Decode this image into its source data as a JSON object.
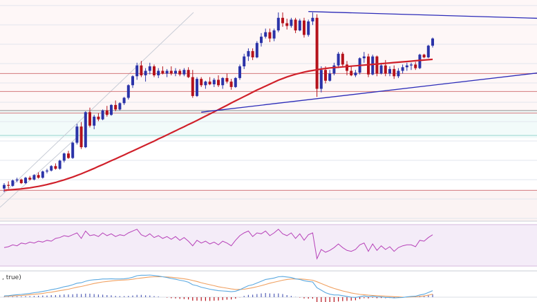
{
  "colors": {
    "bull": "#2b33a8",
    "bear": "#b5121b",
    "sma": "#d0202a",
    "trendline": "#2a2ab8",
    "support_line": "#d2777b",
    "grid": "#e2e6ee",
    "rsi_band": "#f4ecf8",
    "rsi_line": "#b640b8",
    "macd_line": "#5aa8e0",
    "signal_line": "#f0a060",
    "pane_border": "#c8ccd6",
    "price_band": "#fdf1f1"
  },
  "macd_panel": {
    "label": ", true)"
  },
  "chart_data": {
    "type": "candlestick",
    "title": "",
    "xlabel": "",
    "ylabel": "",
    "price_range": [
      0,
      100
    ],
    "grid": true,
    "candles": [
      [
        2.0,
        5.0,
        0.0,
        4.0
      ],
      [
        4.0,
        6.0,
        2.0,
        3.5
      ],
      [
        3.5,
        7.0,
        3.0,
        6.5
      ],
      [
        6.5,
        8.0,
        5.5,
        7.0
      ],
      [
        7.0,
        7.5,
        4.5,
        5.0
      ],
      [
        5.0,
        8.5,
        4.5,
        8.0
      ],
      [
        8.0,
        9.0,
        6.5,
        7.0
      ],
      [
        7.0,
        10.0,
        6.5,
        9.5
      ],
      [
        9.5,
        11.0,
        7.5,
        8.0
      ],
      [
        8.0,
        12.0,
        7.5,
        11.5
      ],
      [
        11.5,
        13.0,
        10.5,
        12.0
      ],
      [
        12.0,
        15.0,
        11.5,
        14.5
      ],
      [
        14.5,
        16.0,
        12.5,
        13.0
      ],
      [
        13.0,
        18.0,
        12.5,
        17.5
      ],
      [
        17.5,
        22.0,
        16.5,
        21.5
      ],
      [
        21.5,
        23.0,
        18.5,
        19.0
      ],
      [
        19.0,
        28.0,
        18.5,
        27.5
      ],
      [
        27.5,
        38.0,
        26.5,
        36.5
      ],
      [
        36.5,
        39.0,
        24.0,
        25.0
      ],
      [
        25.0,
        45.0,
        24.5,
        44.5
      ],
      [
        44.5,
        47.0,
        36.0,
        37.0
      ],
      [
        37.0,
        43.0,
        35.0,
        42.0
      ],
      [
        42.0,
        44.0,
        39.5,
        40.5
      ],
      [
        40.5,
        46.0,
        40.0,
        45.5
      ],
      [
        45.5,
        48.0,
        42.0,
        43.0
      ],
      [
        43.0,
        49.0,
        42.5,
        48.5
      ],
      [
        48.5,
        51.0,
        45.0,
        46.0
      ],
      [
        46.0,
        50.0,
        45.5,
        49.5
      ],
      [
        49.5,
        53.0,
        48.5,
        52.5
      ],
      [
        52.5,
        60.0,
        51.5,
        59.5
      ],
      [
        59.5,
        65.0,
        58.0,
        64.5
      ],
      [
        64.5,
        72.0,
        62.5,
        70.5
      ],
      [
        70.5,
        73.0,
        64.0,
        65.0
      ],
      [
        65.0,
        69.0,
        61.5,
        67.5
      ],
      [
        67.5,
        72.0,
        65.5,
        70.0
      ],
      [
        70.0,
        71.0,
        64.0,
        65.0
      ],
      [
        65.0,
        69.0,
        63.5,
        67.5
      ],
      [
        67.5,
        70.0,
        65.5,
        66.0
      ],
      [
        66.0,
        68.5,
        64.0,
        67.5
      ],
      [
        67.5,
        70.0,
        65.0,
        66.0
      ],
      [
        66.0,
        69.0,
        64.5,
        67.5
      ],
      [
        67.5,
        68.5,
        64.5,
        65.5
      ],
      [
        65.5,
        69.0,
        64.5,
        68.0
      ],
      [
        68.0,
        69.5,
        63.5,
        64.0
      ],
      [
        64.0,
        68.0,
        52.5,
        53.5
      ],
      [
        53.5,
        64.0,
        53.0,
        63.0
      ],
      [
        63.0,
        64.0,
        58.5,
        59.5
      ],
      [
        59.5,
        62.0,
        57.5,
        61.5
      ],
      [
        61.5,
        64.0,
        59.5,
        60.0
      ],
      [
        60.0,
        63.5,
        58.5,
        62.5
      ],
      [
        62.5,
        65.0,
        58.5,
        59.5
      ],
      [
        59.5,
        64.0,
        57.5,
        63.5
      ],
      [
        63.5,
        66.0,
        60.5,
        61.5
      ],
      [
        61.5,
        63.0,
        57.0,
        58.5
      ],
      [
        58.5,
        64.0,
        58.0,
        63.5
      ],
      [
        63.5,
        71.0,
        62.5,
        70.0
      ],
      [
        70.0,
        77.0,
        68.5,
        75.5
      ],
      [
        75.5,
        80.0,
        73.0,
        78.5
      ],
      [
        78.5,
        80.0,
        73.5,
        75.0
      ],
      [
        75.0,
        84.0,
        74.5,
        83.0
      ],
      [
        83.0,
        88.5,
        81.0,
        86.5
      ],
      [
        86.5,
        91.0,
        85.5,
        89.0
      ],
      [
        89.0,
        91.0,
        83.5,
        85.5
      ],
      [
        85.5,
        91.0,
        84.0,
        90.0
      ],
      [
        90.0,
        100.0,
        89.0,
        97.0
      ],
      [
        97.0,
        100.0,
        92.0,
        94.0
      ],
      [
        94.0,
        96.5,
        90.5,
        92.5
      ],
      [
        92.5,
        97.0,
        91.5,
        96.0
      ],
      [
        96.0,
        97.0,
        88.5,
        90.0
      ],
      [
        90.0,
        96.5,
        89.5,
        95.5
      ],
      [
        95.5,
        97.0,
        86.0,
        87.5
      ],
      [
        87.5,
        96.0,
        86.5,
        95.0
      ],
      [
        95.0,
        100.0,
        93.0,
        97.0
      ],
      [
        97.0,
        99.0,
        53.0,
        57.5
      ],
      [
        57.5,
        70.0,
        55.5,
        68.0
      ],
      [
        68.0,
        70.0,
        60.5,
        62.0
      ],
      [
        62.0,
        68.0,
        61.5,
        66.0
      ],
      [
        66.0,
        72.0,
        65.0,
        70.5
      ],
      [
        70.5,
        78.0,
        69.0,
        77.0
      ],
      [
        77.0,
        78.0,
        69.5,
        71.0
      ],
      [
        71.0,
        73.0,
        65.0,
        67.5
      ],
      [
        67.5,
        70.0,
        64.5,
        65.0
      ],
      [
        65.0,
        68.0,
        64.0,
        66.5
      ],
      [
        66.5,
        75.0,
        65.5,
        74.5
      ],
      [
        74.5,
        78.0,
        72.0,
        75.5
      ],
      [
        75.5,
        77.0,
        64.0,
        65.5
      ],
      [
        65.5,
        76.5,
        65.0,
        75.5
      ],
      [
        75.5,
        76.0,
        64.5,
        66.0
      ],
      [
        66.0,
        72.0,
        65.5,
        70.5
      ],
      [
        70.5,
        73.5,
        64.5,
        66.0
      ],
      [
        66.0,
        70.0,
        64.5,
        68.5
      ],
      [
        68.5,
        70.5,
        63.0,
        64.5
      ],
      [
        64.5,
        69.0,
        63.5,
        67.5
      ],
      [
        67.5,
        71.0,
        66.0,
        69.5
      ],
      [
        69.5,
        72.0,
        67.5,
        70.5
      ],
      [
        70.5,
        72.0,
        68.0,
        71.0
      ],
      [
        71.0,
        72.5,
        68.0,
        69.0
      ],
      [
        69.0,
        77.0,
        68.5,
        76.5
      ],
      [
        76.5,
        77.0,
        74.5,
        75.0
      ],
      [
        75.0,
        82.0,
        74.5,
        81.5
      ],
      [
        81.5,
        86.0,
        80.5,
        85.5
      ]
    ],
    "sma": [
      1.0,
      1.2,
      1.4,
      1.6,
      1.8,
      2.1,
      2.4,
      2.8,
      3.2,
      3.7,
      4.2,
      4.8,
      5.4,
      6.1,
      6.8,
      7.6,
      8.4,
      9.3,
      10.2,
      11.2,
      12.2,
      13.2,
      14.3,
      15.3,
      16.4,
      17.5,
      18.5,
      19.6,
      20.7,
      21.8,
      22.9,
      24.0,
      25.1,
      26.2,
      27.3,
      28.4,
      29.6,
      30.7,
      31.8,
      33.0,
      34.1,
      35.3,
      36.4,
      37.6,
      38.7,
      39.9,
      41.1,
      42.3,
      43.5,
      44.7,
      45.9,
      47.1,
      48.3,
      49.6,
      50.8,
      52.0,
      53.2,
      54.4,
      55.6,
      56.8,
      57.9,
      59.0,
      60.1,
      61.2,
      62.3,
      63.2,
      64.1,
      64.9,
      65.6,
      66.2,
      66.8,
      67.3,
      67.7,
      68.1,
      68.5,
      68.8,
      69.1,
      69.3,
      69.5,
      69.7,
      69.9,
      70.1,
      70.3,
      70.5,
      70.7,
      70.9,
      71.1,
      71.3,
      71.5,
      71.7,
      71.9,
      72.1,
      72.3,
      72.5,
      72.7,
      72.9,
      73.1,
      73.3,
      73.5,
      73.7,
      73.9
    ],
    "levels": [
      {
        "name": "support-1",
        "value": 66
      },
      {
        "name": "support-2",
        "value": 56
      },
      {
        "name": "support-3",
        "value": 44
      },
      {
        "name": "support-4",
        "value": 1
      }
    ],
    "trendlines": [
      {
        "name": "upper-trendline",
        "from": [
          71,
          100.5
        ],
        "to": [
          128,
          96.5
        ]
      },
      {
        "name": "lower-trendline",
        "from": [
          46,
          44.5
        ],
        "to": [
          136,
          69.5
        ]
      }
    ],
    "rsi": [
      50,
      51,
      53,
      52,
      55,
      54,
      56,
      55,
      57,
      56,
      58,
      57,
      60,
      61,
      63,
      62,
      64,
      66,
      60,
      68,
      63,
      64,
      62,
      66,
      63,
      65,
      62,
      64,
      63,
      66,
      68,
      70,
      64,
      62,
      65,
      61,
      63,
      60,
      62,
      59,
      62,
      58,
      61,
      57,
      52,
      58,
      55,
      57,
      54,
      56,
      53,
      57,
      55,
      52,
      58,
      63,
      66,
      68,
      62,
      66,
      65,
      68,
      63,
      66,
      70,
      65,
      63,
      66,
      60,
      65,
      58,
      64,
      66,
      38,
      48,
      45,
      47,
      50,
      54,
      50,
      47,
      46,
      48,
      53,
      55,
      46,
      54,
      47,
      52,
      48,
      51,
      46,
      50,
      52,
      53,
      53,
      51,
      58,
      57,
      61,
      64
    ],
    "macd": [
      0.5,
      0.6,
      0.8,
      1.0,
      1.1,
      1.3,
      1.5,
      1.8,
      2.0,
      2.3,
      2.6,
      3.0,
      3.3,
      3.7,
      4.2,
      4.5,
      5.0,
      5.6,
      5.8,
      6.4,
      6.8,
      7.0,
      7.1,
      7.3,
      7.3,
      7.4,
      7.3,
      7.3,
      7.4,
      7.6,
      8.0,
      8.6,
      8.8,
      8.8,
      8.9,
      8.7,
      8.5,
      8.2,
      7.9,
      7.5,
      7.2,
      6.8,
      6.5,
      6.0,
      5.0,
      4.6,
      4.0,
      3.6,
      3.2,
      2.9,
      2.6,
      2.5,
      2.4,
      2.2,
      2.4,
      3.0,
      3.8,
      4.6,
      5.0,
      5.7,
      6.4,
      7.1,
      7.4,
      7.7,
      8.2,
      8.3,
      8.1,
      7.9,
      7.4,
      7.1,
      6.6,
      6.3,
      6.1,
      3.8,
      2.8,
      1.8,
      1.2,
      0.9,
      0.9,
      0.6,
      0.3,
      0.0,
      -0.1,
      0.2,
      0.5,
      0.2,
      0.4,
      0.1,
      0.1,
      -0.1,
      -0.1,
      -0.3,
      -0.2,
      -0.1,
      0.1,
      0.3,
      0.4,
      0.9,
      1.2,
      1.9,
      2.6
    ],
    "signal": [
      0.3,
      0.4,
      0.5,
      0.6,
      0.7,
      0.8,
      1.0,
      1.2,
      1.3,
      1.5,
      1.8,
      2.0,
      2.3,
      2.6,
      2.9,
      3.2,
      3.6,
      4.0,
      4.3,
      4.7,
      5.1,
      5.5,
      5.8,
      6.1,
      6.3,
      6.5,
      6.7,
      6.8,
      6.9,
      7.0,
      7.2,
      7.5,
      7.7,
      7.9,
      8.1,
      8.2,
      8.2,
      8.2,
      8.1,
      8.0,
      7.8,
      7.6,
      7.4,
      7.1,
      6.7,
      6.3,
      5.8,
      5.4,
      5.0,
      4.6,
      4.2,
      3.9,
      3.6,
      3.3,
      3.1,
      3.1,
      3.2,
      3.5,
      3.8,
      4.2,
      4.6,
      5.1,
      5.6,
      6.0,
      6.4,
      6.8,
      7.1,
      7.3,
      7.3,
      7.3,
      7.2,
      7.0,
      6.8,
      6.2,
      5.5,
      4.8,
      4.1,
      3.5,
      3.0,
      2.5,
      2.1,
      1.7,
      1.4,
      1.1,
      1.0,
      0.8,
      0.7,
      0.6,
      0.5,
      0.4,
      0.3,
      0.2,
      0.1,
      0.0,
      0.0,
      0.1,
      0.2,
      0.3,
      0.5,
      0.8,
      1.2
    ]
  }
}
